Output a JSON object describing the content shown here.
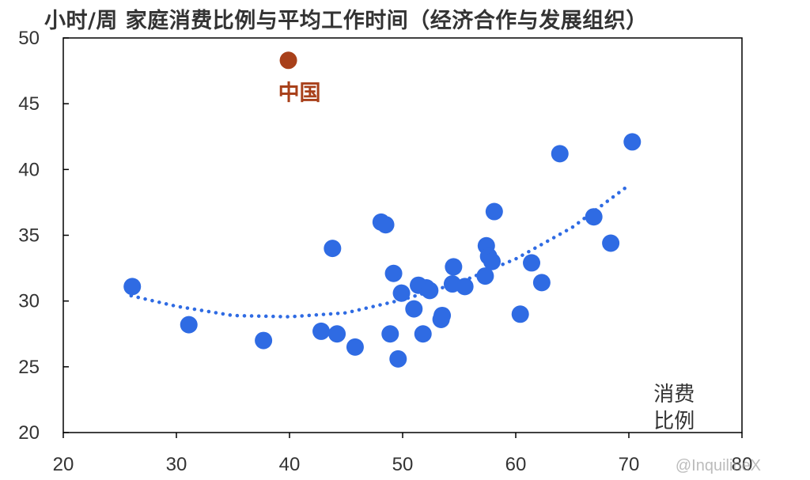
{
  "title": "小时/周 家庭消费比例与平均工作时间（经济合作与发展组织）",
  "watermark": "@InquilineX",
  "chart_data": {
    "type": "scatter",
    "title": "小时/周 家庭消费比例与平均工作时间（经济合作与发展组织）",
    "xlabel": "消费 比例",
    "xlabel_lines": [
      "消费",
      "比例"
    ],
    "ylabel": "",
    "xlim": [
      20,
      80
    ],
    "ylim": [
      20,
      50
    ],
    "x_ticks": [
      20,
      30,
      40,
      50,
      60,
      70,
      80
    ],
    "y_ticks": [
      20,
      25,
      30,
      35,
      40,
      45,
      50
    ],
    "grid": false,
    "colors": {
      "oecd": "#2f6be3",
      "china": "#a8401a",
      "trend": "#2f6be3",
      "axis": "#000000"
    },
    "series": [
      {
        "points": [
          [
            26.1,
            31.1
          ],
          [
            31.1,
            28.2
          ],
          [
            37.7,
            27.0
          ],
          [
            42.8,
            27.7
          ],
          [
            43.8,
            34.0
          ],
          [
            44.2,
            27.5
          ],
          [
            45.8,
            26.5
          ],
          [
            48.1,
            36.0
          ],
          [
            48.5,
            35.8
          ],
          [
            48.9,
            27.5
          ],
          [
            49.2,
            32.1
          ],
          [
            49.6,
            25.6
          ],
          [
            49.9,
            30.6
          ],
          [
            51.0,
            29.4
          ],
          [
            51.4,
            31.2
          ],
          [
            51.8,
            27.5
          ],
          [
            52.1,
            31.0
          ],
          [
            52.4,
            30.8
          ],
          [
            53.4,
            28.6
          ],
          [
            53.5,
            28.9
          ],
          [
            54.4,
            31.3
          ],
          [
            54.5,
            32.6
          ],
          [
            55.5,
            31.1
          ],
          [
            57.3,
            31.9
          ],
          [
            57.4,
            34.2
          ],
          [
            57.6,
            33.4
          ],
          [
            57.9,
            33.0
          ],
          [
            58.1,
            36.8
          ],
          [
            60.4,
            29.0
          ],
          [
            61.4,
            32.9
          ],
          [
            62.3,
            31.4
          ],
          [
            63.9,
            41.2
          ],
          [
            66.9,
            36.4
          ],
          [
            68.4,
            34.4
          ],
          [
            70.3,
            42.1
          ]
        ]
      },
      {
        "label": "中国",
        "points": [
          [
            39.9,
            48.3
          ]
        ]
      }
    ],
    "trendline": {
      "type": "quadratic",
      "x_range": [
        26,
        70
      ],
      "points": [
        [
          26,
          30.4
        ],
        [
          30,
          29.6
        ],
        [
          35,
          28.9
        ],
        [
          40,
          28.8
        ],
        [
          45,
          29.1
        ],
        [
          50,
          30.1
        ],
        [
          55,
          31.4
        ],
        [
          60,
          33.2
        ],
        [
          65,
          35.6
        ],
        [
          70,
          38.8
        ]
      ]
    }
  }
}
